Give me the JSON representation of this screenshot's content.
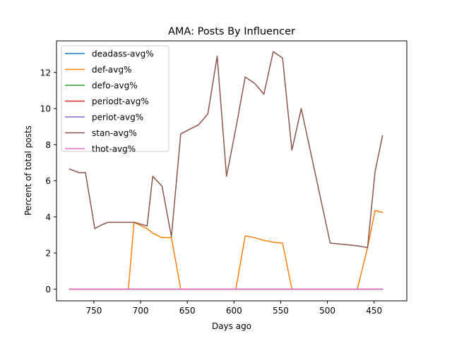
{
  "chart_data": {
    "type": "line",
    "title": "AMA: Posts By Influencer",
    "xlabel": "Days ago",
    "ylabel": "Percent of total posts",
    "xlim": [
      790,
      415
    ],
    "ylim": [
      -0.65,
      13.75
    ],
    "x_inverted": true,
    "xticks": [
      750,
      700,
      650,
      600,
      550,
      500,
      450
    ],
    "yticks": [
      0,
      2,
      4,
      6,
      8,
      10,
      12
    ],
    "grid": false,
    "legend": "top-left",
    "x": [
      776,
      766,
      759,
      749,
      742,
      735,
      727,
      713,
      707,
      693,
      687,
      677,
      667,
      657,
      638,
      628,
      618,
      608,
      598,
      588,
      578,
      568,
      558,
      548,
      538,
      528,
      497,
      468,
      457,
      449,
      441
    ],
    "series": [
      {
        "name": "deadass-avg%",
        "color": "#1f77b4",
        "values": [
          0,
          0,
          0,
          0,
          0,
          0,
          0,
          0,
          0,
          0,
          0,
          0,
          0,
          0,
          0,
          0,
          0,
          0,
          0,
          0,
          0,
          0,
          0,
          0,
          0,
          0,
          0,
          0,
          0,
          0,
          0
        ]
      },
      {
        "name": "def-avg%",
        "color": "#ff7f0e",
        "values": [
          0,
          0,
          0,
          0,
          0,
          0,
          0,
          0,
          3.7,
          3.35,
          3.1,
          2.85,
          2.85,
          0,
          0,
          0,
          0,
          0,
          0,
          2.95,
          2.85,
          2.7,
          2.6,
          2.55,
          0,
          0,
          0,
          0,
          2.3,
          4.35,
          4.25
        ]
      },
      {
        "name": "defo-avg%",
        "color": "#2ca02c",
        "values": [
          0,
          0,
          0,
          0,
          0,
          0,
          0,
          0,
          0,
          0,
          0,
          0,
          0,
          0,
          0,
          0,
          0,
          0,
          0,
          0,
          0,
          0,
          0,
          0,
          0,
          0,
          0,
          0,
          0,
          0,
          0
        ]
      },
      {
        "name": "periodt-avg%",
        "color": "#d62728",
        "values": [
          0,
          0,
          0,
          0,
          0,
          0,
          0,
          0,
          0,
          0,
          0,
          0,
          0,
          0,
          0,
          0,
          0,
          0,
          0,
          0,
          0,
          0,
          0,
          0,
          0,
          0,
          0,
          0,
          0,
          0,
          0
        ]
      },
      {
        "name": "periot-avg%",
        "color": "#9467bd",
        "values": [
          0,
          0,
          0,
          0,
          0,
          0,
          0,
          0,
          0,
          0,
          0,
          0,
          0,
          0,
          0,
          0,
          0,
          0,
          0,
          0,
          0,
          0,
          0,
          0,
          0,
          0,
          0,
          0,
          0,
          0,
          0
        ]
      },
      {
        "name": "stan-avg%",
        "color": "#8c564b",
        "values": [
          6.65,
          6.45,
          6.45,
          3.35,
          3.55,
          3.7,
          3.7,
          3.7,
          3.7,
          3.5,
          6.25,
          5.7,
          2.9,
          8.6,
          9.1,
          9.7,
          12.9,
          6.25,
          8.9,
          11.75,
          11.4,
          10.8,
          13.15,
          12.8,
          7.7,
          10.0,
          2.55,
          2.4,
          2.3,
          6.5,
          8.5
        ]
      },
      {
        "name": "thot-avg%",
        "color": "#e377c2",
        "values": [
          0,
          0,
          0,
          0,
          0,
          0,
          0,
          0,
          0,
          0,
          0,
          0,
          0,
          0,
          0,
          0,
          0,
          0,
          0,
          0,
          0,
          0,
          0,
          0,
          0,
          0,
          0,
          0,
          0,
          0,
          0
        ]
      }
    ]
  }
}
